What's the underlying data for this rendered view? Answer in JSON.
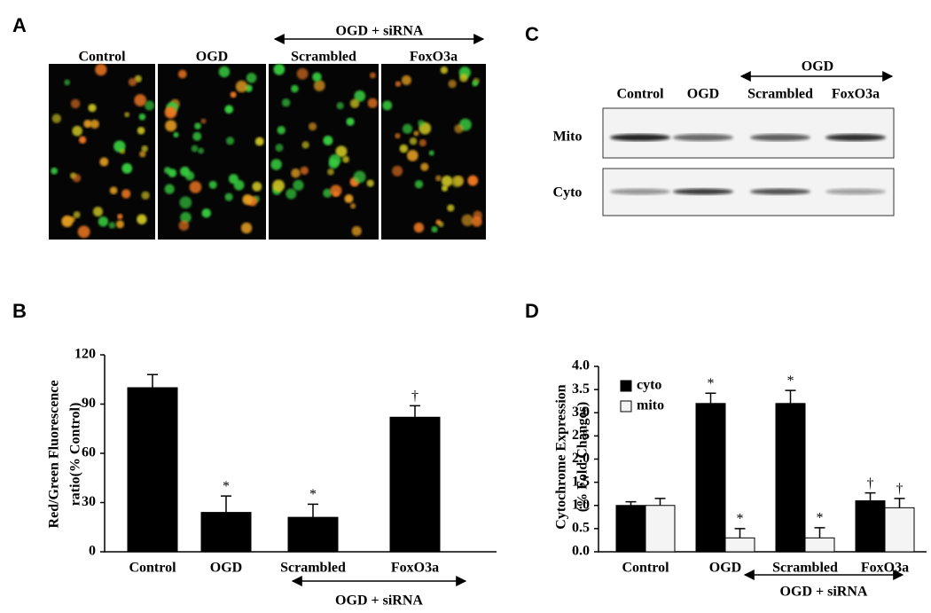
{
  "panel_a": {
    "label": "A",
    "group_label": "OGD + siRNA",
    "images": [
      "Control",
      "OGD",
      "Scrambled",
      "FoxO3a"
    ]
  },
  "panel_c": {
    "label": "C",
    "group_label": "OGD",
    "lanes": [
      "Control",
      "OGD",
      "Scrambled",
      "FoxO3a"
    ],
    "rows": [
      "Mito",
      "Cyto"
    ]
  },
  "chart_data": [
    {
      "type": "bar",
      "panel_label": "B",
      "ylabel": [
        "Red/Green Fluorescence",
        "ratio(% Control)"
      ],
      "categories": [
        "Control",
        "OGD",
        "Scrambled",
        "FoxO3a"
      ],
      "values": [
        100,
        24,
        21,
        82
      ],
      "errors": [
        8,
        10,
        8,
        7
      ],
      "annotations": [
        null,
        "*",
        "*",
        "†"
      ],
      "color": "#000000",
      "group_label": "OGD + siRNA",
      "ylim": [
        0,
        120
      ],
      "yticks": [
        0,
        30,
        60,
        90,
        120
      ]
    },
    {
      "type": "grouped_bar",
      "panel_label": "D",
      "ylabel": [
        "Cytochrome Expression",
        "(% Fold Changes)"
      ],
      "categories": [
        "Control",
        "OGD",
        "Scrambled",
        "FoxO3a"
      ],
      "group_label": "OGD + siRNA",
      "series": [
        {
          "name": "cyto",
          "color": "#000000",
          "values": [
            1.0,
            3.2,
            3.2,
            1.1
          ],
          "errors": [
            0.08,
            0.22,
            0.28,
            0.17
          ],
          "annotations": [
            null,
            "*",
            "*",
            "†"
          ]
        },
        {
          "name": "mito",
          "color": "#f4f4f4",
          "values": [
            1.0,
            0.3,
            0.3,
            0.95
          ],
          "errors": [
            0.15,
            0.2,
            0.22,
            0.2
          ],
          "annotations": [
            null,
            "*",
            "*",
            "†"
          ]
        }
      ],
      "ylim": [
        0,
        4
      ],
      "yticks": [
        {
          "value": 0,
          "label": "0.0"
        },
        {
          "value": 0.5,
          "label": "0.5"
        },
        {
          "value": 1,
          "label": "1.0"
        },
        {
          "value": 1.5,
          "label": "1.5"
        },
        {
          "value": 2,
          "label": "2.0"
        },
        {
          "value": 2.5,
          "label": "2.5"
        },
        {
          "value": 3,
          "label": "3.0"
        },
        {
          "value": 3.5,
          "label": "3.5"
        },
        {
          "value": 4,
          "label": "4.0"
        }
      ]
    }
  ]
}
